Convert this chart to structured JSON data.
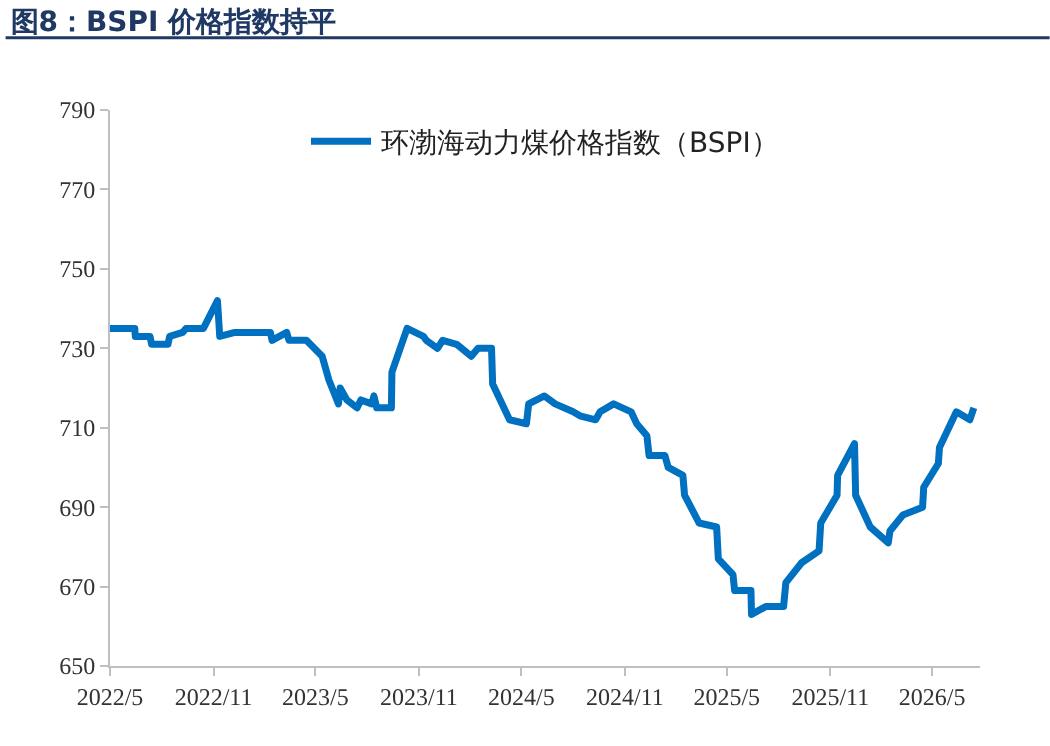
{
  "chart_data": {
    "type": "line",
    "title": "图8：BSPI 价格指数持平",
    "series": [
      {
        "name": "环渤海动力煤价格指数（BSPI）",
        "color": "#0070c0",
        "x": [
          "2022-05-01",
          "2022-06-14",
          "2022-06-15",
          "2022-07-11",
          "2022-07-14",
          "2022-08-12",
          "2022-08-15",
          "2022-09-07",
          "2022-09-13",
          "2022-10-14",
          "2022-11-08",
          "2022-11-12",
          "2022-12-09",
          "2023-02-10",
          "2023-02-13",
          "2023-03-11",
          "2023-03-15",
          "2023-04-15",
          "2023-05-13",
          "2023-05-25",
          "2023-06-11",
          "2023-06-14",
          "2023-06-26",
          "2023-07-14",
          "2023-07-21",
          "2023-08-09",
          "2023-08-13",
          "2023-08-18",
          "2023-09-13",
          "2023-09-14",
          "2023-10-11",
          "2023-11-09",
          "2023-11-14",
          "2023-12-04",
          "2023-12-13",
          "2024-01-07",
          "2024-02-02",
          "2024-02-14",
          "2024-03-09",
          "2024-03-11",
          "2024-04-10",
          "2024-05-10",
          "2024-05-14",
          "2024-06-11",
          "2024-06-30",
          "2024-08-01",
          "2024-08-13",
          "2024-09-10",
          "2024-09-18",
          "2024-10-12",
          "2024-11-12",
          "2024-11-22",
          "2024-12-10",
          "2024-12-14",
          "2025-01-11",
          "2025-01-17",
          "2025-02-12",
          "2025-02-15",
          "2025-03-13",
          "2025-04-13",
          "2025-04-16",
          "2025-05-12",
          "2025-05-15",
          "2025-06-13",
          "2025-06-14",
          "2025-07-10",
          "2025-08-10",
          "2025-08-14",
          "2025-09-11",
          "2025-10-12",
          "2025-10-15",
          "2025-11-13",
          "2025-11-14",
          "2025-12-14",
          "2025-12-16",
          "2026-01-11",
          "2026-02-12",
          "2026-02-15",
          "2026-03-10",
          "2026-04-14",
          "2026-04-16",
          "2026-05-12",
          "2026-05-14",
          "2026-06-13",
          "2026-07-07",
          "2026-07-14"
        ],
        "values": [
          735,
          735,
          733,
          733,
          731,
          731,
          733,
          734,
          735,
          735,
          742,
          733,
          734,
          734,
          732,
          734,
          732,
          732,
          728,
          722,
          716,
          720,
          717,
          715,
          717,
          716,
          718,
          715,
          715,
          724,
          735,
          733,
          732,
          730,
          732,
          731,
          728,
          730,
          730,
          721,
          712,
          711,
          716,
          718,
          716,
          714,
          713,
          712,
          714,
          716,
          714,
          711,
          708,
          703,
          703,
          700,
          698,
          693,
          686,
          685,
          677,
          673,
          669,
          669,
          663,
          665,
          665,
          671,
          676,
          679,
          686,
          693,
          698,
          706,
          693,
          685,
          681,
          684,
          688,
          690,
          695,
          701,
          705,
          714,
          712,
          715
        ]
      }
    ],
    "xlim": [
      "2022-05-01",
      "2026-07-25"
    ],
    "xticks": [
      {
        "value": "2022-05-01",
        "label": "2022/5"
      },
      {
        "value": "2022-11-01",
        "label": "2022/11"
      },
      {
        "value": "2023-05-01",
        "label": "2023/5"
      },
      {
        "value": "2023-11-01",
        "label": "2023/11"
      },
      {
        "value": "2024-05-01",
        "label": "2024/5"
      },
      {
        "value": "2024-11-01",
        "label": "2024/11"
      },
      {
        "value": "2025-05-01",
        "label": "2025/5"
      },
      {
        "value": "2025-11-01",
        "label": "2025/11"
      },
      {
        "value": "2026-05-01",
        "label": "2026/5"
      }
    ],
    "ylim": [
      650,
      790
    ],
    "yticks": [
      650,
      670,
      690,
      710,
      730,
      750,
      770,
      790
    ],
    "legend": "top",
    "marker": "none",
    "line_style": "solid"
  }
}
